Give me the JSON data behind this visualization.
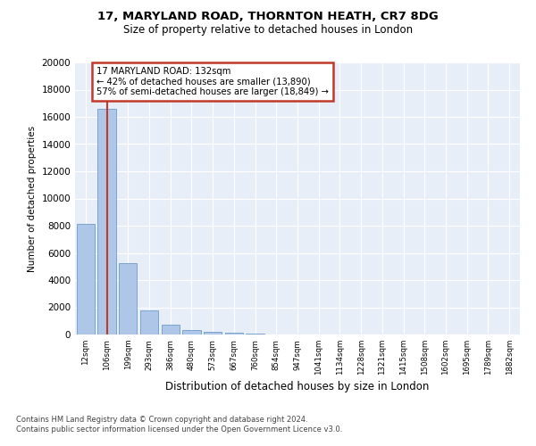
{
  "title1": "17, MARYLAND ROAD, THORNTON HEATH, CR7 8DG",
  "title2": "Size of property relative to detached houses in London",
  "xlabel": "Distribution of detached houses by size in London",
  "ylabel": "Number of detached properties",
  "categories": [
    "12sqm",
    "106sqm",
    "199sqm",
    "293sqm",
    "386sqm",
    "480sqm",
    "573sqm",
    "667sqm",
    "760sqm",
    "854sqm",
    "947sqm",
    "1041sqm",
    "1134sqm",
    "1228sqm",
    "1321sqm",
    "1415sqm",
    "1508sqm",
    "1602sqm",
    "1695sqm",
    "1789sqm",
    "1882sqm"
  ],
  "values": [
    8100,
    16600,
    5250,
    1800,
    700,
    300,
    175,
    100,
    50,
    0,
    0,
    0,
    0,
    0,
    0,
    0,
    0,
    0,
    0,
    0,
    0
  ],
  "bar_color": "#aec6e8",
  "bar_edge_color": "#5a8fc2",
  "highlight_color": "#c0392b",
  "annotation_title": "17 MARYLAND ROAD: 132sqm",
  "annotation_line1": "← 42% of detached houses are smaller (13,890)",
  "annotation_line2": "57% of semi-detached houses are larger (18,849) →",
  "annotation_box_color": "#c0392b",
  "ylim": [
    0,
    20000
  ],
  "yticks": [
    0,
    2000,
    4000,
    6000,
    8000,
    10000,
    12000,
    14000,
    16000,
    18000,
    20000
  ],
  "background_color": "#e8eef8",
  "footer1": "Contains HM Land Registry data © Crown copyright and database right 2024.",
  "footer2": "Contains public sector information licensed under the Open Government Licence v3.0."
}
